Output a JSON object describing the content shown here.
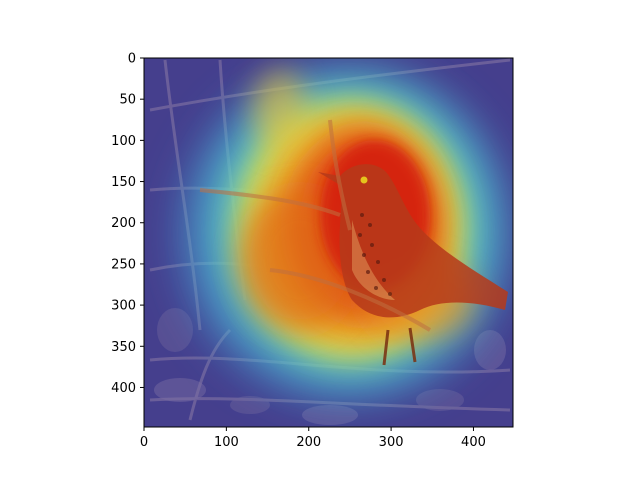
{
  "image": {
    "subject": "bird",
    "overlay": "jet-heatmap"
  },
  "axes": {
    "x_range": [
      0,
      448
    ],
    "y_range": [
      0,
      448
    ],
    "y_inverted": true,
    "x_ticks": [
      {
        "value": 0,
        "label": "0"
      },
      {
        "value": 100,
        "label": "100"
      },
      {
        "value": 200,
        "label": "200"
      },
      {
        "value": 300,
        "label": "300"
      },
      {
        "value": 400,
        "label": "400"
      }
    ],
    "y_ticks": [
      {
        "value": 0,
        "label": "0"
      },
      {
        "value": 50,
        "label": "50"
      },
      {
        "value": 100,
        "label": "100"
      },
      {
        "value": 150,
        "label": "150"
      },
      {
        "value": 200,
        "label": "200"
      },
      {
        "value": 250,
        "label": "250"
      },
      {
        "value": 300,
        "label": "300"
      },
      {
        "value": 350,
        "label": "350"
      },
      {
        "value": 400,
        "label": "400"
      }
    ]
  },
  "colors": {
    "heat_core": "#d41a10",
    "heat_warm": "#f0a020",
    "heat_mid": "#5fe0c8",
    "cool_bg": "#3a3a9a"
  }
}
